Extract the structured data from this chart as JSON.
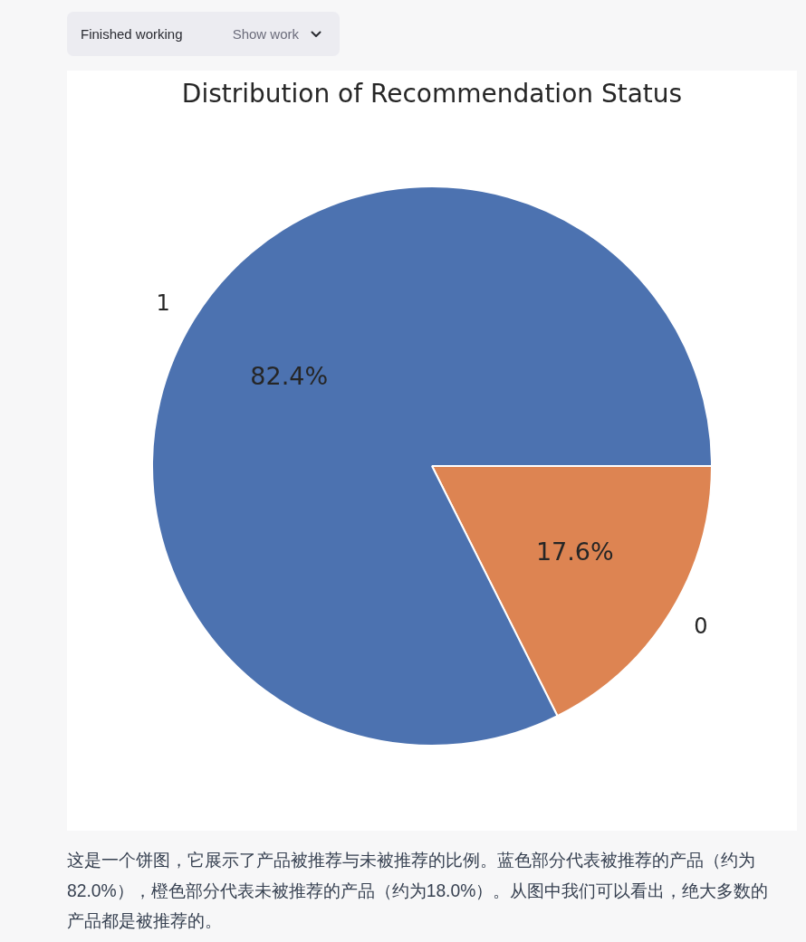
{
  "chart_data": {
    "type": "pie",
    "title": "Distribution of Recommendation Status",
    "categories": [
      "1",
      "0"
    ],
    "values": [
      82.4,
      17.6
    ],
    "colors": [
      "#4c72b0",
      "#dd8452"
    ],
    "value_labels": [
      "82.4%",
      "17.6%"
    ],
    "annotations": [
      "Finished working",
      "Show work",
      "这是一个饼图，它展示了产品被推荐与未被推荐的比例。蓝色部分代表被推荐的产品（约为82.0%），橙色部分代表未被推荐的产品（约为18.0%）。从图中我们可以看出，绝大多数的产品都是被推荐的。"
    ]
  }
}
